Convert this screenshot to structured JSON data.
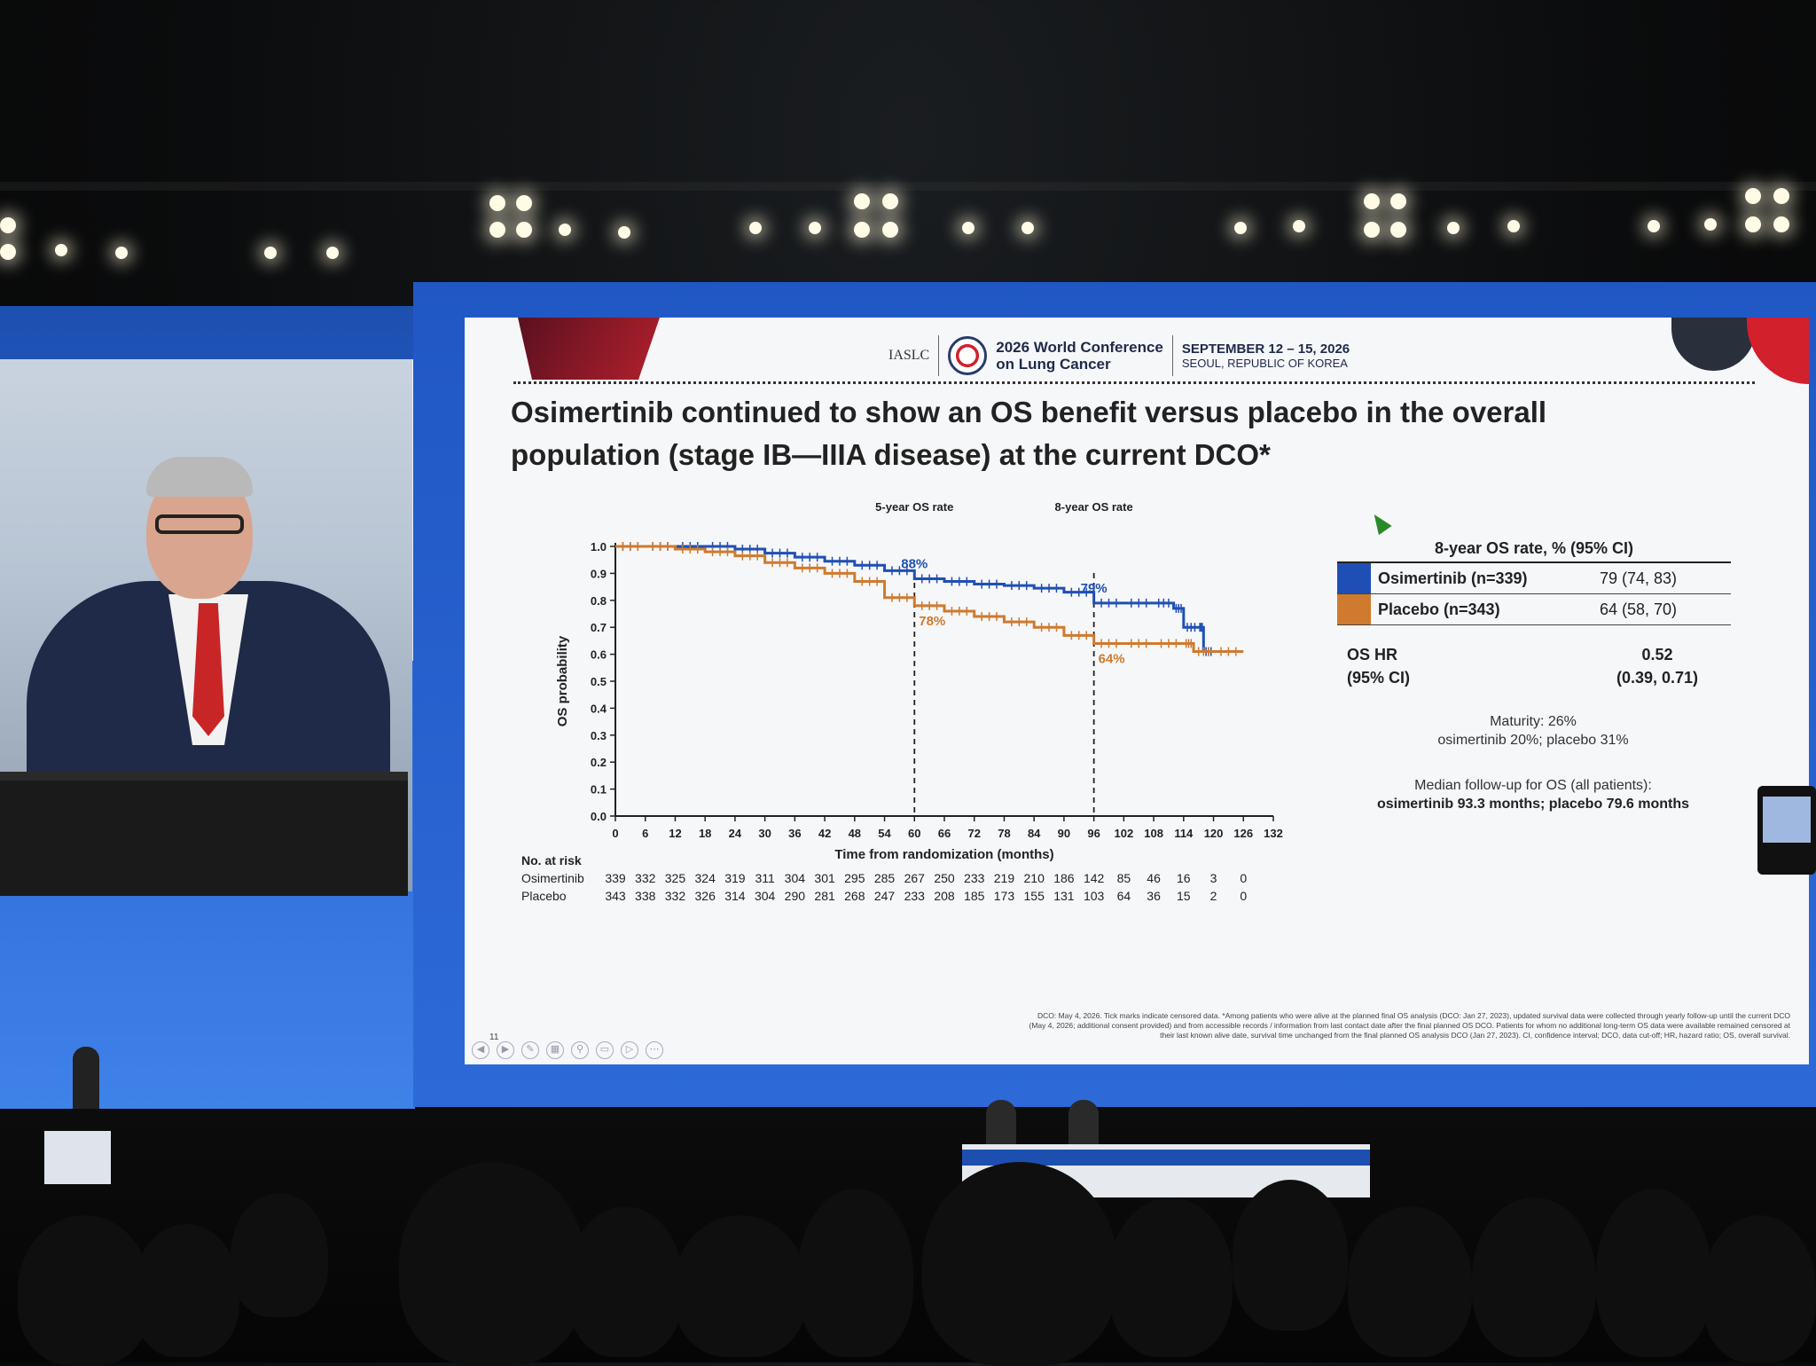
{
  "conference": {
    "org": "IASLC",
    "title_line1": "2026 World Conference",
    "title_line2": "on Lung Cancer",
    "dates": "SEPTEMBER 12 – 15, 2026",
    "location": "SEOUL, REPUBLIC OF KOREA"
  },
  "slide": {
    "title_line1": "Osimertinib continued to show an OS benefit versus placebo in the overall",
    "title_line2": "population (stage IB—IIIA disease) at the current DCO*",
    "page_number": "11",
    "footnote_line1": "DCO: May 4, 2026. Tick marks indicate censored data. *Among patients who were alive at the planned final OS analysis (DCO: Jan 27, 2023), updated survival data were collected through yearly follow-up until the current DCO",
    "footnote_line2": "(May 4, 2026; additional consent provided) and from accessible records / information from last contact date after the final planned OS DCO. Patients for whom no additional long-term OS data were available remained censored at",
    "footnote_line3": "their last known alive date, survival time unchanged from the final planned OS analysis DCO (Jan 27, 2023). CI, confidence interval; DCO, data cut-off; HR, hazard ratio; OS, overall survival."
  },
  "legend_table": {
    "heading": "8-year OS rate, % (95% CI)",
    "rows": [
      {
        "name": "Osimertinib (n=339)",
        "value": "79 (74, 83)",
        "color": "#1f4fb4"
      },
      {
        "name": "Placebo (n=343)",
        "value": "64 (58, 70)",
        "color": "#cf7a2e"
      }
    ]
  },
  "hr": {
    "label_line1": "OS HR",
    "label_line2": "(95% CI)",
    "value_line1": "0.52",
    "value_line2": "(0.39, 0.71)"
  },
  "notes": {
    "maturity_line1": "Maturity: 26%",
    "maturity_line2": "osimertinib 20%; placebo 31%",
    "followup_line1": "Median follow-up for OS (all patients):",
    "followup_line2": "osimertinib 93.3 months; placebo 79.6 months"
  },
  "chart_data": {
    "type": "line",
    "title": "",
    "xlabel": "Time from randomization (months)",
    "ylabel": "OS probability",
    "xlim": [
      0,
      132
    ],
    "ylim": [
      0,
      1.0
    ],
    "x_ticks": [
      0,
      6,
      12,
      18,
      24,
      30,
      36,
      42,
      48,
      54,
      60,
      66,
      72,
      78,
      84,
      90,
      96,
      102,
      108,
      114,
      120,
      126,
      132
    ],
    "y_ticks": [
      "0.0",
      "0.1",
      "0.2",
      "0.3",
      "0.4",
      "0.5",
      "0.6",
      "0.7",
      "0.8",
      "0.9",
      "1.0"
    ],
    "reference_lines": [
      {
        "x": 60,
        "label": "5-year OS rate"
      },
      {
        "x": 96,
        "label": "8-year OS rate"
      }
    ],
    "annotations": [
      {
        "series": "Osimertinib",
        "x": 60,
        "y": 0.88,
        "text": "88%"
      },
      {
        "series": "Placebo",
        "x": 60,
        "y": 0.78,
        "text": "78%"
      },
      {
        "series": "Osimertinib",
        "x": 96,
        "y": 0.79,
        "text": "79%"
      },
      {
        "series": "Placebo",
        "x": 96,
        "y": 0.64,
        "text": "64%"
      }
    ],
    "series": [
      {
        "name": "Osimertinib",
        "color": "#1f4fb4",
        "x": [
          0,
          6,
          12,
          18,
          24,
          30,
          36,
          42,
          48,
          54,
          60,
          66,
          72,
          78,
          84,
          90,
          96,
          102,
          108,
          112,
          114,
          117,
          118,
          120
        ],
        "y": [
          1.0,
          1.0,
          1.0,
          1.0,
          0.99,
          0.975,
          0.96,
          0.945,
          0.93,
          0.91,
          0.88,
          0.87,
          0.86,
          0.855,
          0.845,
          0.83,
          0.79,
          0.79,
          0.79,
          0.77,
          0.7,
          0.7,
          0.61,
          0.61
        ]
      },
      {
        "name": "Placebo",
        "color": "#cf7a2e",
        "x": [
          0,
          6,
          12,
          18,
          24,
          30,
          36,
          42,
          48,
          54,
          60,
          66,
          72,
          78,
          84,
          90,
          96,
          102,
          108,
          114,
          116,
          120,
          126
        ],
        "y": [
          1.0,
          1.0,
          0.99,
          0.98,
          0.965,
          0.94,
          0.92,
          0.9,
          0.87,
          0.81,
          0.78,
          0.76,
          0.74,
          0.72,
          0.7,
          0.67,
          0.64,
          0.64,
          0.64,
          0.64,
          0.61,
          0.61,
          0.61
        ]
      }
    ],
    "risk_table": {
      "heading": "No. at risk",
      "rows": [
        {
          "label": "Osimertinib",
          "values": [
            "339",
            "332",
            "325",
            "324",
            "319",
            "311",
            "304",
            "301",
            "295",
            "285",
            "267",
            "250",
            "233",
            "219",
            "210",
            "186",
            "142",
            "85",
            "46",
            "16",
            "3",
            "0"
          ]
        },
        {
          "label": "Placebo",
          "values": [
            "343",
            "338",
            "332",
            "326",
            "314",
            "304",
            "290",
            "281",
            "268",
            "247",
            "233",
            "208",
            "185",
            "173",
            "155",
            "131",
            "103",
            "64",
            "36",
            "15",
            "2",
            "0"
          ]
        }
      ]
    }
  }
}
